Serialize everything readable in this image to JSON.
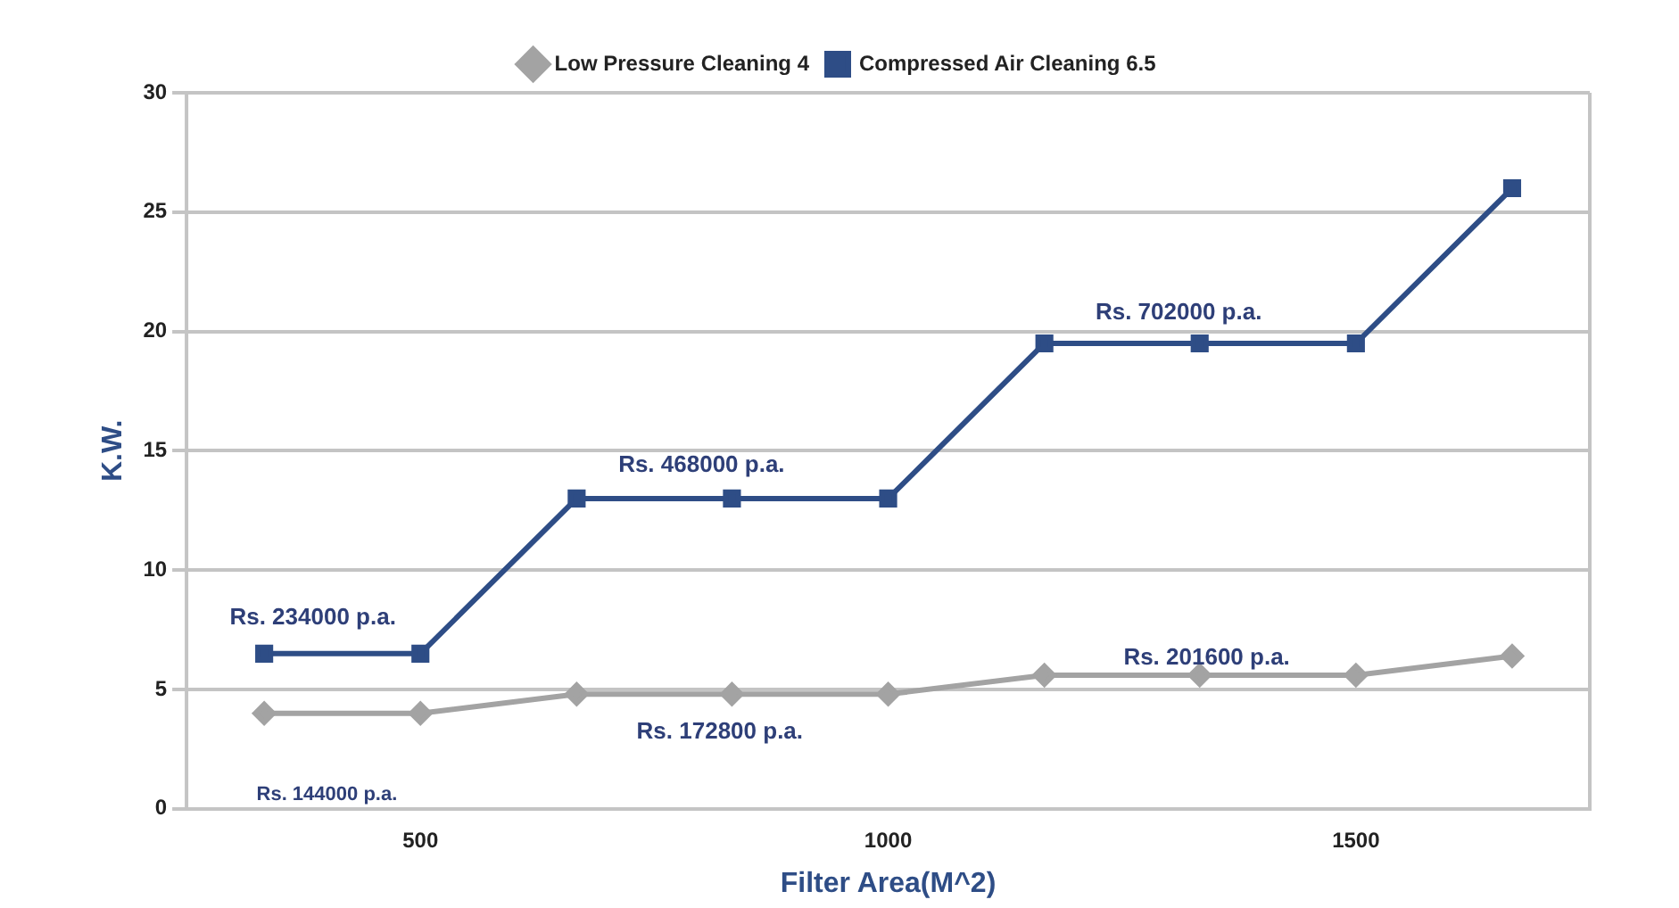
{
  "chart_data": {
    "type": "line",
    "xlabel": "Filter Area(M^2)",
    "ylabel": "K.W.",
    "x": [
      333,
      500,
      667,
      833,
      1000,
      1167,
      1333,
      1500,
      1667
    ],
    "series": [
      {
        "name": "Low Pressure Cleaning 4",
        "color": "#a3a3a3",
        "marker": "diamond",
        "values": [
          4,
          4,
          4.8,
          4.8,
          4.8,
          5.6,
          5.6,
          5.6,
          6.4
        ]
      },
      {
        "name": "Compressed Air Cleaning 6.5",
        "color": "#2e4d86",
        "marker": "square",
        "values": [
          6.5,
          6.5,
          13,
          13,
          13,
          19.5,
          19.5,
          19.5,
          26
        ]
      }
    ],
    "xlim": [
      250,
      1750
    ],
    "xticks": [
      500,
      1000,
      1500
    ],
    "ylim": [
      0,
      30
    ],
    "yticks": [
      0,
      5,
      10,
      15,
      20,
      25,
      30
    ],
    "grid": "y",
    "legend": "top",
    "line_style": "solid",
    "annotations": [
      "Rs. 234000 p.a.",
      "Rs. 468000 p.a.",
      "Rs. 702000 p.a.",
      "Rs. 201600 p.a.",
      "Rs. 172800 p.a.",
      "Rs. 144000 p.a."
    ]
  }
}
